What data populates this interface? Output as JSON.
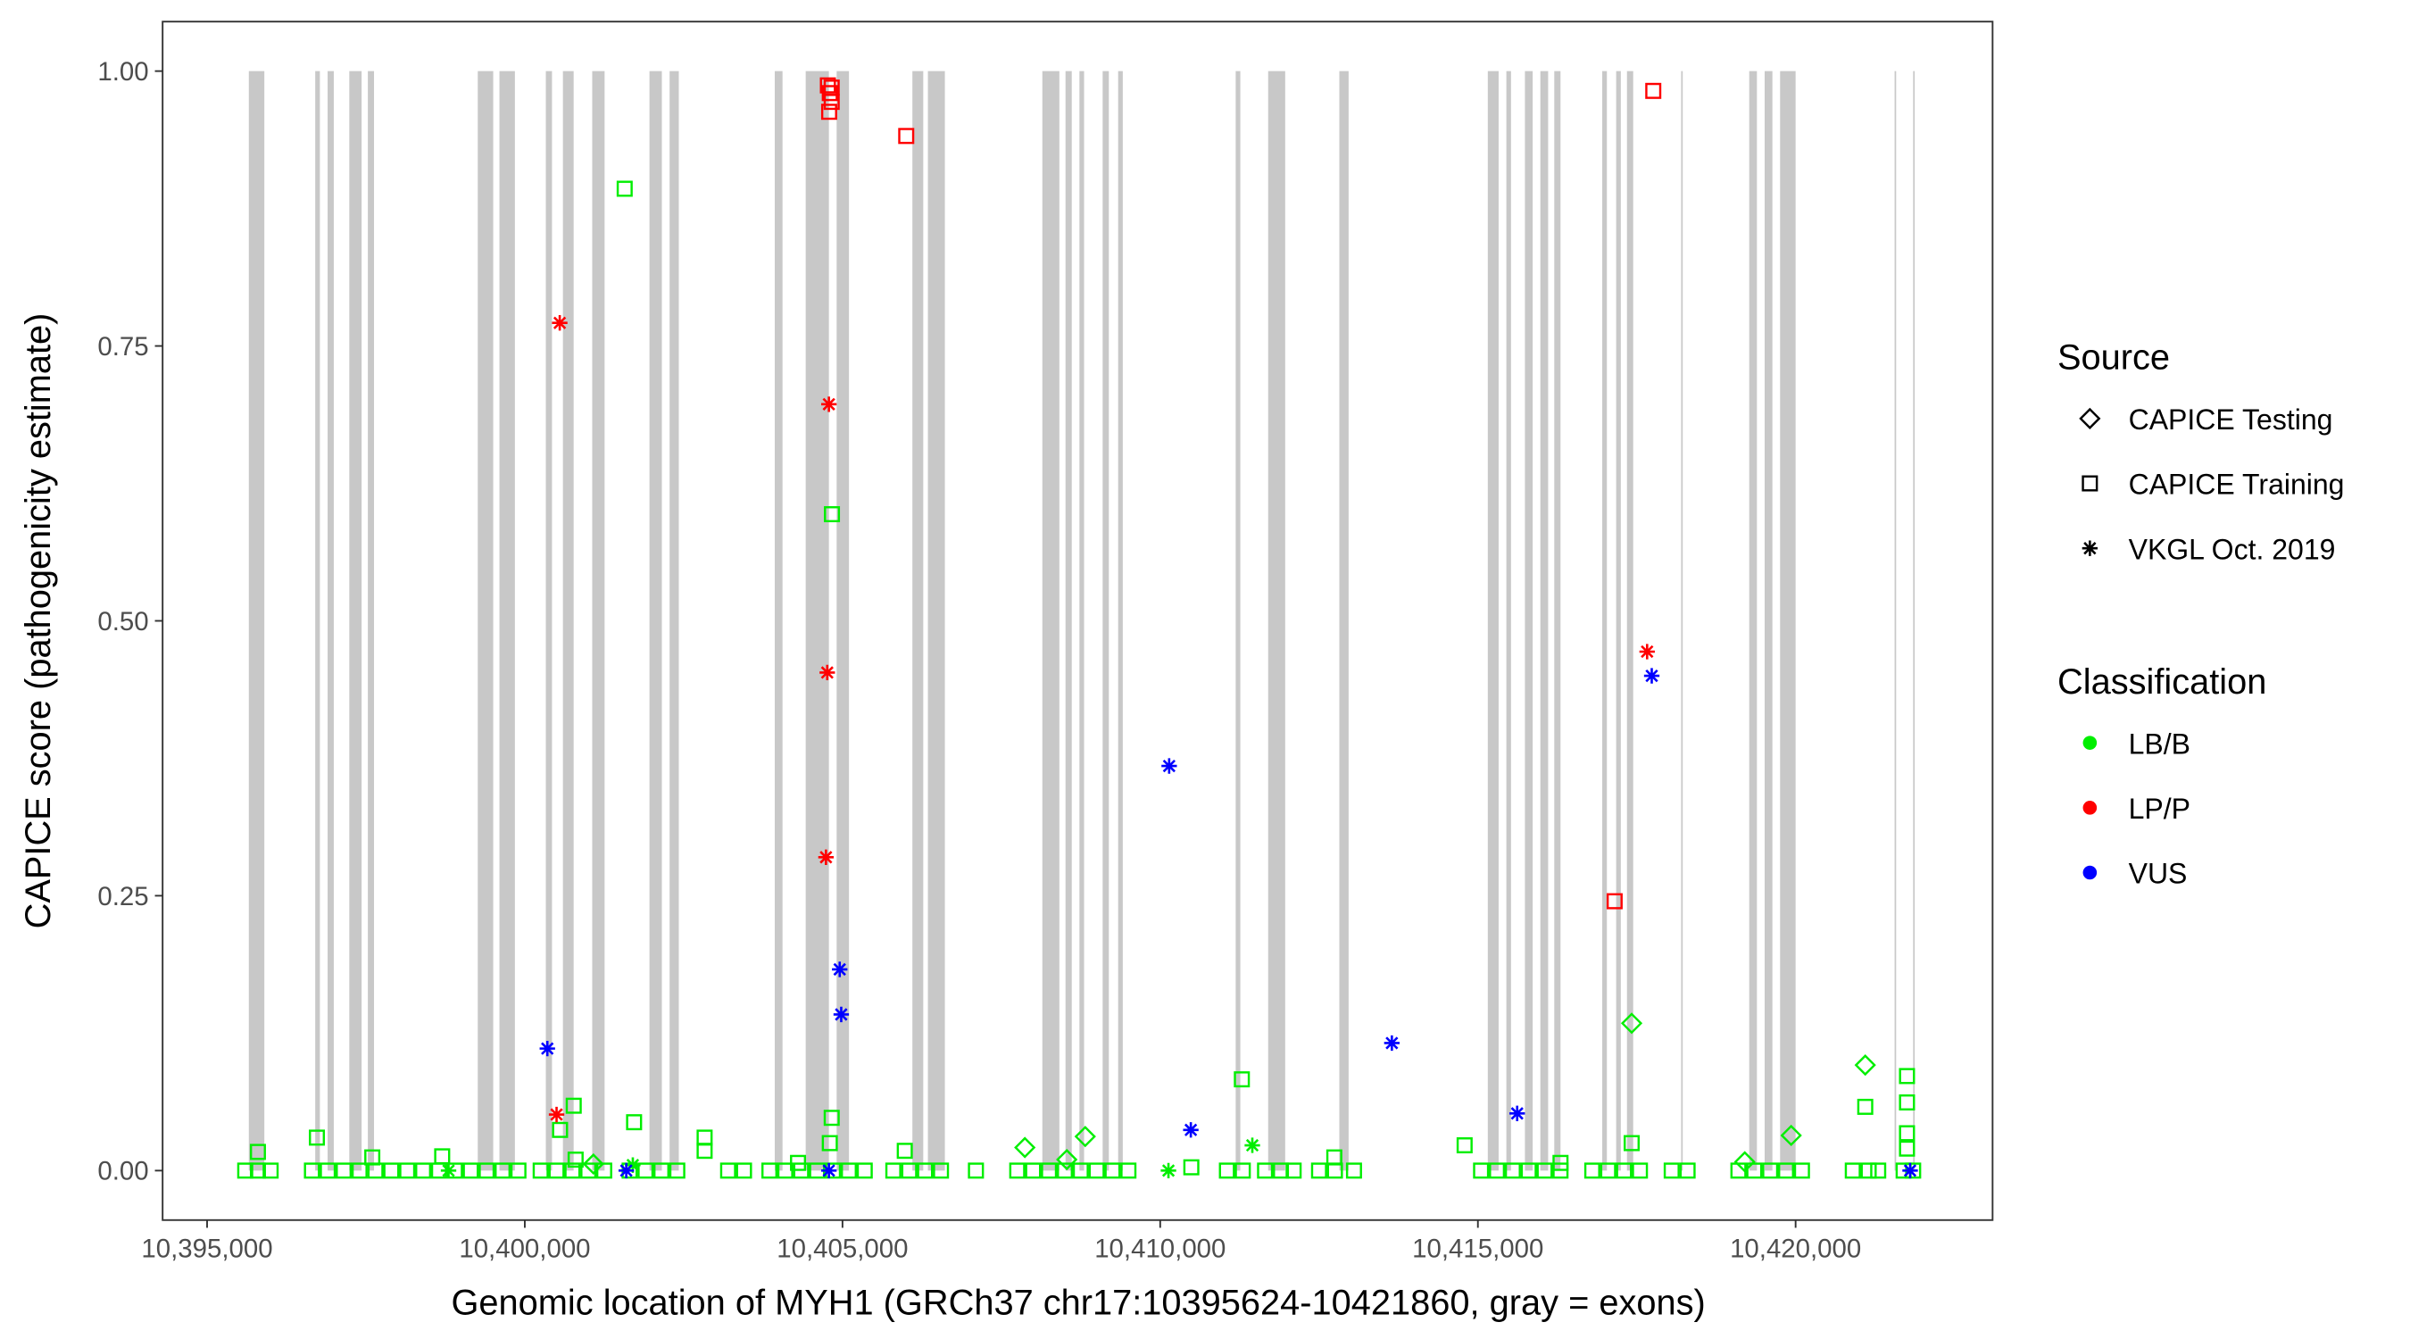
{
  "chart_data": {
    "type": "scatter",
    "title": "",
    "xlabel": "Genomic location of MYH1 (GRCh37 chr17:10395624-10421860, gray = exons)",
    "ylabel": "CAPICE score (pathogenicity estimate)",
    "xlim": [
      10394300,
      10423100
    ],
    "ylim": [
      -0.045,
      1.045
    ],
    "x_ticks": [
      10395000,
      10400000,
      10405000,
      10410000,
      10415000,
      10420000
    ],
    "x_tick_labels": [
      "10,395,000",
      "10,400,000",
      "10,405,000",
      "10,410,000",
      "10,415,000",
      "10,420,000"
    ],
    "y_ticks": [
      0,
      0.25,
      0.5,
      0.75,
      1.0
    ],
    "y_tick_labels": [
      "0.00",
      "0.25",
      "0.50",
      "0.75",
      "1.00"
    ],
    "grid": false,
    "legend_position": "right",
    "exon_color": "#c8c8c8",
    "exons": [
      [
        10395657,
        10395901
      ],
      [
        10396702,
        10396775
      ],
      [
        10396897,
        10396994
      ],
      [
        10397238,
        10397432
      ],
      [
        10397530,
        10397627
      ],
      [
        10399260,
        10399503
      ],
      [
        10399601,
        10399844
      ],
      [
        10400331,
        10400428
      ],
      [
        10400600,
        10400769
      ],
      [
        10401061,
        10401256
      ],
      [
        10401962,
        10402157
      ],
      [
        10402279,
        10402424
      ],
      [
        10403934,
        10404056
      ],
      [
        10404421,
        10404786
      ],
      [
        10404908,
        10405102
      ],
      [
        10406100,
        10406271
      ],
      [
        10406344,
        10406611
      ],
      [
        10408145,
        10408413
      ],
      [
        10408510,
        10408608
      ],
      [
        10408729,
        10408802
      ],
      [
        10409094,
        10409192
      ],
      [
        10409338,
        10409411
      ],
      [
        10411188,
        10411261
      ],
      [
        10411699,
        10411967
      ],
      [
        10412819,
        10412965
      ],
      [
        10415156,
        10415326
      ],
      [
        10415448,
        10415521
      ],
      [
        10415740,
        10415862
      ],
      [
        10415983,
        10416105
      ],
      [
        10416202,
        10416300
      ],
      [
        10416957,
        10417030
      ],
      [
        10417176,
        10417249
      ],
      [
        10417346,
        10417444
      ],
      [
        10418199,
        10418223
      ],
      [
        10419270,
        10419391
      ],
      [
        10419513,
        10419635
      ],
      [
        10419756,
        10420000
      ],
      [
        10421558,
        10421582
      ],
      [
        10421850,
        10421874
      ]
    ],
    "legend": {
      "source_title": "Source",
      "sources": [
        {
          "name": "CAPICE Testing",
          "shape": "diamond"
        },
        {
          "name": "CAPICE Training",
          "shape": "square"
        },
        {
          "name": "VKGL Oct. 2019",
          "shape": "asterisk"
        }
      ],
      "classification_title": "Classification",
      "classifications": [
        {
          "name": "LB/B",
          "color": "#00ee00"
        },
        {
          "name": "LP/P",
          "color": "#ff0000"
        },
        {
          "name": "VUS",
          "color": "#0000ff"
        }
      ]
    },
    "series": [
      {
        "source": "CAPICE Training",
        "classification": "LB/B",
        "x": [
          10395600,
          10395800,
          10396000,
          10396650,
          10396900,
          10397150,
          10397400,
          10397650,
          10397900,
          10398150,
          10398400,
          10398650,
          10398900,
          10399150,
          10399400,
          10399650,
          10399900,
          10400250,
          10400500,
          10400750,
          10401000,
          10401250,
          10401650,
          10401900,
          10402150,
          10402400,
          10403200,
          10403450,
          10403850,
          10404100,
          10404350,
          10404600,
          10404850,
          10405100,
          10405350,
          10405800,
          10406050,
          10406300,
          10406550,
          10407100,
          10407750,
          10408000,
          10408250,
          10408500,
          10408750,
          10409000,
          10409250,
          10409500,
          10411050,
          10411300,
          10411650,
          10411900,
          10412100,
          10412500,
          10412750,
          10413050,
          10415050,
          10415300,
          10415550,
          10415800,
          10416050,
          10416300,
          10416800,
          10417050,
          10417300,
          10417550,
          10418050,
          10418300,
          10419100,
          10419350,
          10419600,
          10419850,
          10420100,
          10420900,
          10421150,
          10421300,
          10421700,
          10421850,
          10395800,
          10396728,
          10397600,
          10398700,
          10400555,
          10400770,
          10400800,
          10401720,
          10402830,
          10402830,
          10404300,
          10404830,
          10404800,
          10405980,
          10410490,
          10411285,
          10412740,
          10414791,
          10416300,
          10417420,
          10421096,
          10421753,
          10421753,
          10421753,
          10421753,
          10401572,
          10404834
        ],
        "y": [
          0,
          0,
          0,
          0,
          0,
          0,
          0,
          0,
          0,
          0,
          0,
          0,
          0,
          0,
          0,
          0,
          0,
          0,
          0,
          0,
          0,
          0,
          0,
          0,
          0,
          0,
          0,
          0,
          0,
          0,
          0,
          0,
          0,
          0,
          0,
          0,
          0,
          0,
          0,
          0,
          0,
          0,
          0,
          0,
          0,
          0,
          0,
          0,
          0,
          0,
          0,
          0,
          0,
          0,
          0,
          0,
          0,
          0,
          0,
          0,
          0,
          0,
          0,
          0,
          0,
          0,
          0,
          0,
          0,
          0,
          0,
          0,
          0,
          0,
          0,
          0,
          0,
          0,
          0.017,
          0.03,
          0.012,
          0.013,
          0.037,
          0.059,
          0.01,
          0.044,
          0.03,
          0.018,
          0.007,
          0.048,
          0.025,
          0.018,
          0.003,
          0.083,
          0.012,
          0.023,
          0.007,
          0.025,
          0.058,
          0.086,
          0.062,
          0.034,
          0.02,
          0.893,
          0.597
        ]
      },
      {
        "source": "CAPICE Testing",
        "classification": "LB/B",
        "x": [
          10417420,
          10421096,
          10419930,
          10408820,
          10407870,
          10401080,
          10408530,
          10419200
        ],
        "y": [
          0.134,
          0.096,
          0.032,
          0.031,
          0.021,
          0.006,
          0.01,
          0.008
        ]
      },
      {
        "source": "VKGL Oct. 2019",
        "classification": "LB/B",
        "x": [
          10411450,
          10410130,
          10401700,
          10398800
        ],
        "y": [
          0.023,
          0,
          0.005,
          0
        ]
      },
      {
        "source": "CAPICE Training",
        "classification": "LP/P",
        "x": [
          10404770,
          10404830,
          10404800,
          10404830,
          10404790,
          10406003,
          10417760,
          10417152
        ],
        "y": [
          0.987,
          0.985,
          0.98,
          0.972,
          0.963,
          0.941,
          0.982,
          0.245
        ]
      },
      {
        "source": "VKGL Oct. 2019",
        "classification": "LP/P",
        "x": [
          10400550,
          10404786,
          10404760,
          10404740,
          10400500,
          10417663
        ],
        "y": [
          0.771,
          0.697,
          0.453,
          0.285,
          0.051,
          0.472
        ]
      },
      {
        "source": "VKGL Oct. 2019",
        "classification": "VUS",
        "x": [
          10400355,
          10404956,
          10404980,
          10410141,
          10410482,
          10413646,
          10415618,
          10417736,
          10404786,
          10401597,
          10421802
        ],
        "y": [
          0.111,
          0.183,
          0.142,
          0.368,
          0.037,
          0.116,
          0.052,
          0.45,
          0,
          0,
          0
        ]
      }
    ]
  }
}
